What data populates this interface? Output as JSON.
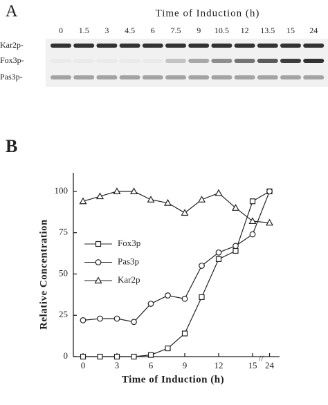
{
  "panel_a": {
    "label": "A",
    "title": "Time of Induction (h)",
    "lanes": [
      "0",
      "1.5",
      "3",
      "4.5",
      "6",
      "7.5",
      "9",
      "10.5",
      "12",
      "13.5",
      "15",
      "24"
    ],
    "rows": [
      "Kar2p-",
      "Fox3p-",
      "Pas3p-"
    ]
  },
  "chart_data": {
    "type": "line",
    "label": "B",
    "x_label": "Time of Induction (h)",
    "y_label": "Relative Concentration",
    "categories": [
      "0",
      null,
      "3",
      null,
      "6",
      null,
      "9",
      null,
      "12",
      null,
      "15",
      "24"
    ],
    "ylim": [
      0,
      110
    ],
    "yticks": [
      0,
      25,
      50,
      75,
      100
    ],
    "series": [
      {
        "name": "Fox3p",
        "marker": "square",
        "color": "#222",
        "values": [
          0,
          0,
          0,
          0,
          1,
          5,
          14,
          36,
          59,
          64,
          94,
          100
        ]
      },
      {
        "name": "Pas3p",
        "marker": "circle",
        "color": "#222",
        "values": [
          22,
          23,
          23,
          21,
          32,
          37,
          35,
          55,
          63,
          67,
          74,
          100
        ]
      },
      {
        "name": "Kar2p",
        "marker": "triangle",
        "color": "#222",
        "values": [
          94,
          97,
          100,
          100,
          95,
          93,
          87,
          95,
          99,
          90,
          82,
          81
        ]
      }
    ]
  }
}
